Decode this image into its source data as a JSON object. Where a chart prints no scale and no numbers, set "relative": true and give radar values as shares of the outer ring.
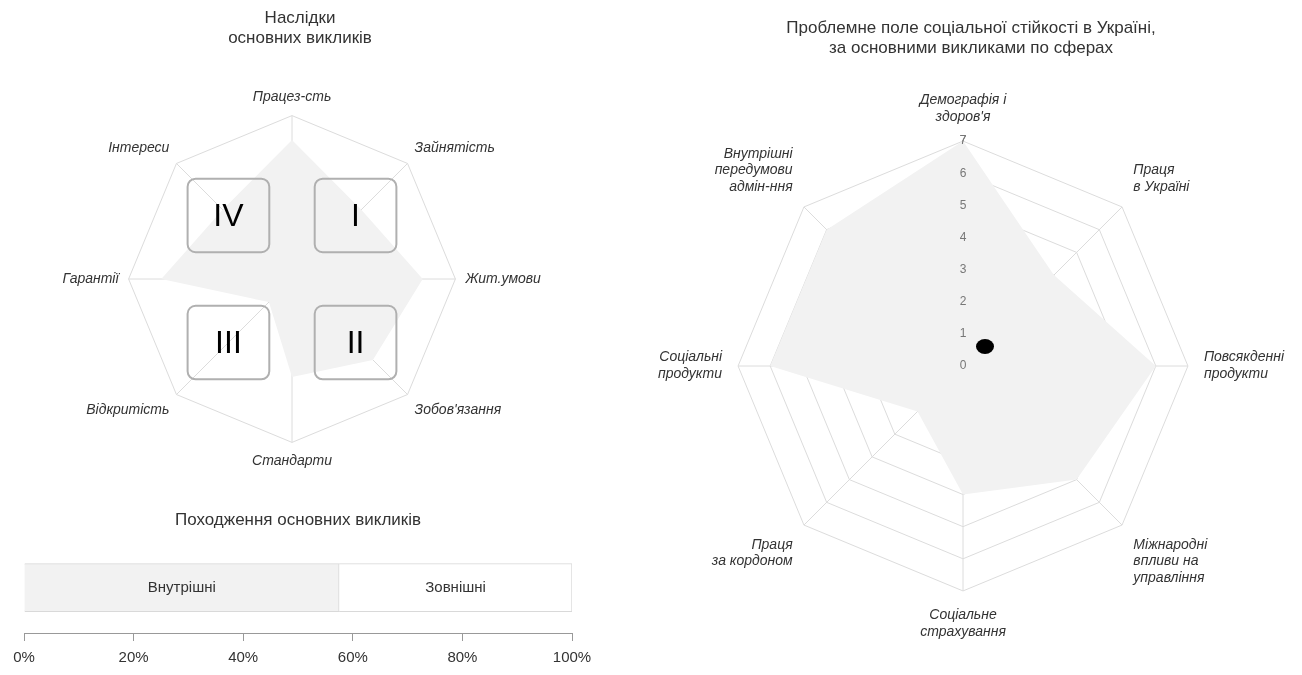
{
  "chart_data": [
    {
      "type": "radar",
      "title": "Наслідки\nосновних викликів",
      "categories": [
        "Працез-сть",
        "Зайнятість",
        "Жит.умови",
        "Зобов'язання",
        "Стандарти",
        "Відкритість",
        "Гарантії",
        "Інтереси"
      ],
      "relative": true,
      "grid": true,
      "legend": false,
      "series": [
        {
          "color": "#f2f2f2",
          "values": [
            0.85,
            0.6,
            0.8,
            0.7,
            0.6,
            0.2,
            0.8,
            0.6
          ]
        }
      ],
      "annotations": [
        "I",
        "II",
        "III",
        "IV"
      ]
    },
    {
      "type": "bar",
      "title": "Походження основних викликів",
      "orientation": "horizontal",
      "stacked": true,
      "categories": [
        null
      ],
      "grid": false,
      "legend": false,
      "series": [
        {
          "name": "Внутрішні",
          "color": "#f2f2f2",
          "values": [
            57.5
          ]
        },
        {
          "name": "Зовнішні",
          "color": "#ffffff",
          "values": [
            42.5
          ]
        }
      ],
      "xlim": [
        0,
        100
      ],
      "xticks": [
        {
          "value": 0,
          "label": "0%"
        },
        {
          "value": 20,
          "label": "20%"
        },
        {
          "value": 40,
          "label": "40%"
        },
        {
          "value": 60,
          "label": "60%"
        },
        {
          "value": 80,
          "label": "80%"
        },
        {
          "value": 100,
          "label": "100%"
        }
      ]
    },
    {
      "type": "radar",
      "title": "Проблемне поле соціальної стійкості в Україні,\nза основними викликами по сферах",
      "categories": [
        "Демографія і\nздоров'я",
        "Праця\nв Україні",
        "Повсякденні\nпродукти",
        "Міжнародні\nвпливи на\nуправління",
        "Соціальне\nстрахування",
        "Праця\nза кордоном",
        "Соціальні\nпродукти",
        "Внутрішні\nпередумови\nадмін-ння"
      ],
      "grid": true,
      "legend": false,
      "ylim": [
        0,
        7
      ],
      "yticks": [
        0,
        1,
        2,
        3,
        4,
        5,
        6,
        7
      ],
      "series": [
        {
          "color": "#f2f2f2",
          "values": [
            7,
            4,
            6,
            5,
            4,
            2,
            6,
            6
          ]
        }
      ]
    }
  ]
}
